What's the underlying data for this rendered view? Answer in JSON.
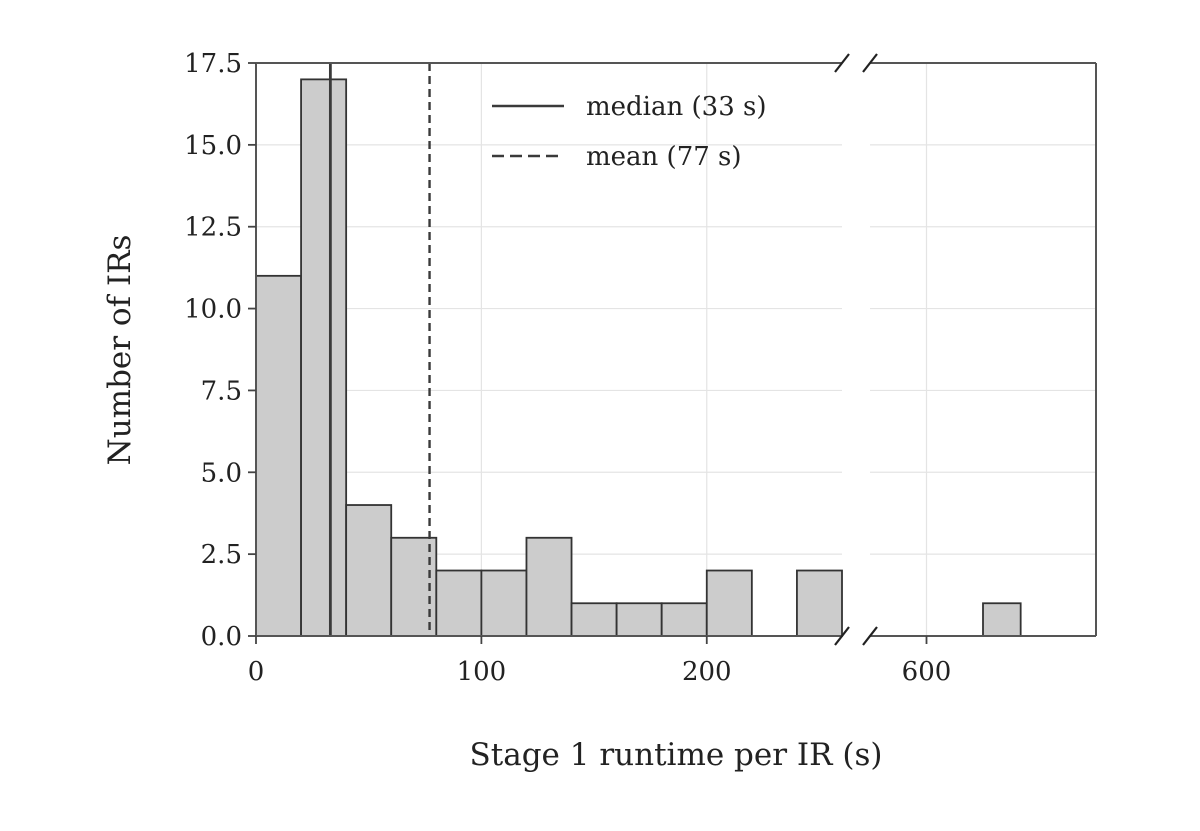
{
  "chart_data": {
    "type": "bar",
    "xlabel": "Stage 1 runtime per IR (s)",
    "ylabel": "Number of IRs",
    "grid": true,
    "broken_x_axis": true,
    "legend_placement": "top-center",
    "left_panel": {
      "xlim": [
        0,
        260
      ],
      "xticks": [
        0,
        100,
        200
      ],
      "xtick_labels": [
        "0",
        "100",
        "200"
      ]
    },
    "right_panel": {
      "xlim": [
        570,
        690
      ],
      "xticks": [
        600
      ],
      "xtick_labels": [
        "600"
      ]
    },
    "ylim": [
      0,
      17.5
    ],
    "yticks": [
      0,
      2.5,
      5.0,
      7.5,
      10.0,
      12.5,
      15.0,
      17.5
    ],
    "ytick_labels": [
      "0.0",
      "2.5",
      "5.0",
      "7.5",
      "10.0",
      "12.5",
      "15.0",
      "17.5"
    ],
    "bins": [
      {
        "x0": 0,
        "x1": 20,
        "count": 11
      },
      {
        "x0": 20,
        "x1": 40,
        "count": 17
      },
      {
        "x0": 40,
        "x1": 60,
        "count": 4
      },
      {
        "x0": 60,
        "x1": 80,
        "count": 3
      },
      {
        "x0": 80,
        "x1": 100,
        "count": 2
      },
      {
        "x0": 100,
        "x1": 120,
        "count": 2
      },
      {
        "x0": 120,
        "x1": 140,
        "count": 3
      },
      {
        "x0": 140,
        "x1": 160,
        "count": 1
      },
      {
        "x0": 160,
        "x1": 180,
        "count": 1
      },
      {
        "x0": 180,
        "x1": 200,
        "count": 1
      },
      {
        "x0": 200,
        "x1": 220,
        "count": 2
      },
      {
        "x0": 220,
        "x1": 240,
        "count": 0
      },
      {
        "x0": 240,
        "x1": 260,
        "count": 2
      },
      {
        "x0": 570,
        "x1": 590,
        "count": 0
      },
      {
        "x0": 590,
        "x1": 610,
        "count": 0
      },
      {
        "x0": 610,
        "x1": 630,
        "count": 0
      },
      {
        "x0": 630,
        "x1": 650,
        "count": 1
      },
      {
        "x0": 650,
        "x1": 670,
        "count": 0
      },
      {
        "x0": 670,
        "x1": 690,
        "count": 0
      }
    ],
    "reference_lines": [
      {
        "label": "median (33 s)",
        "x": 33,
        "style": "solid",
        "color": "#3a3a3a"
      },
      {
        "label": "mean (77 s)",
        "x": 77,
        "style": "dashed",
        "color": "#3a3a3a"
      }
    ],
    "bar_color": "#cccccc",
    "edge_color": "#333333"
  }
}
